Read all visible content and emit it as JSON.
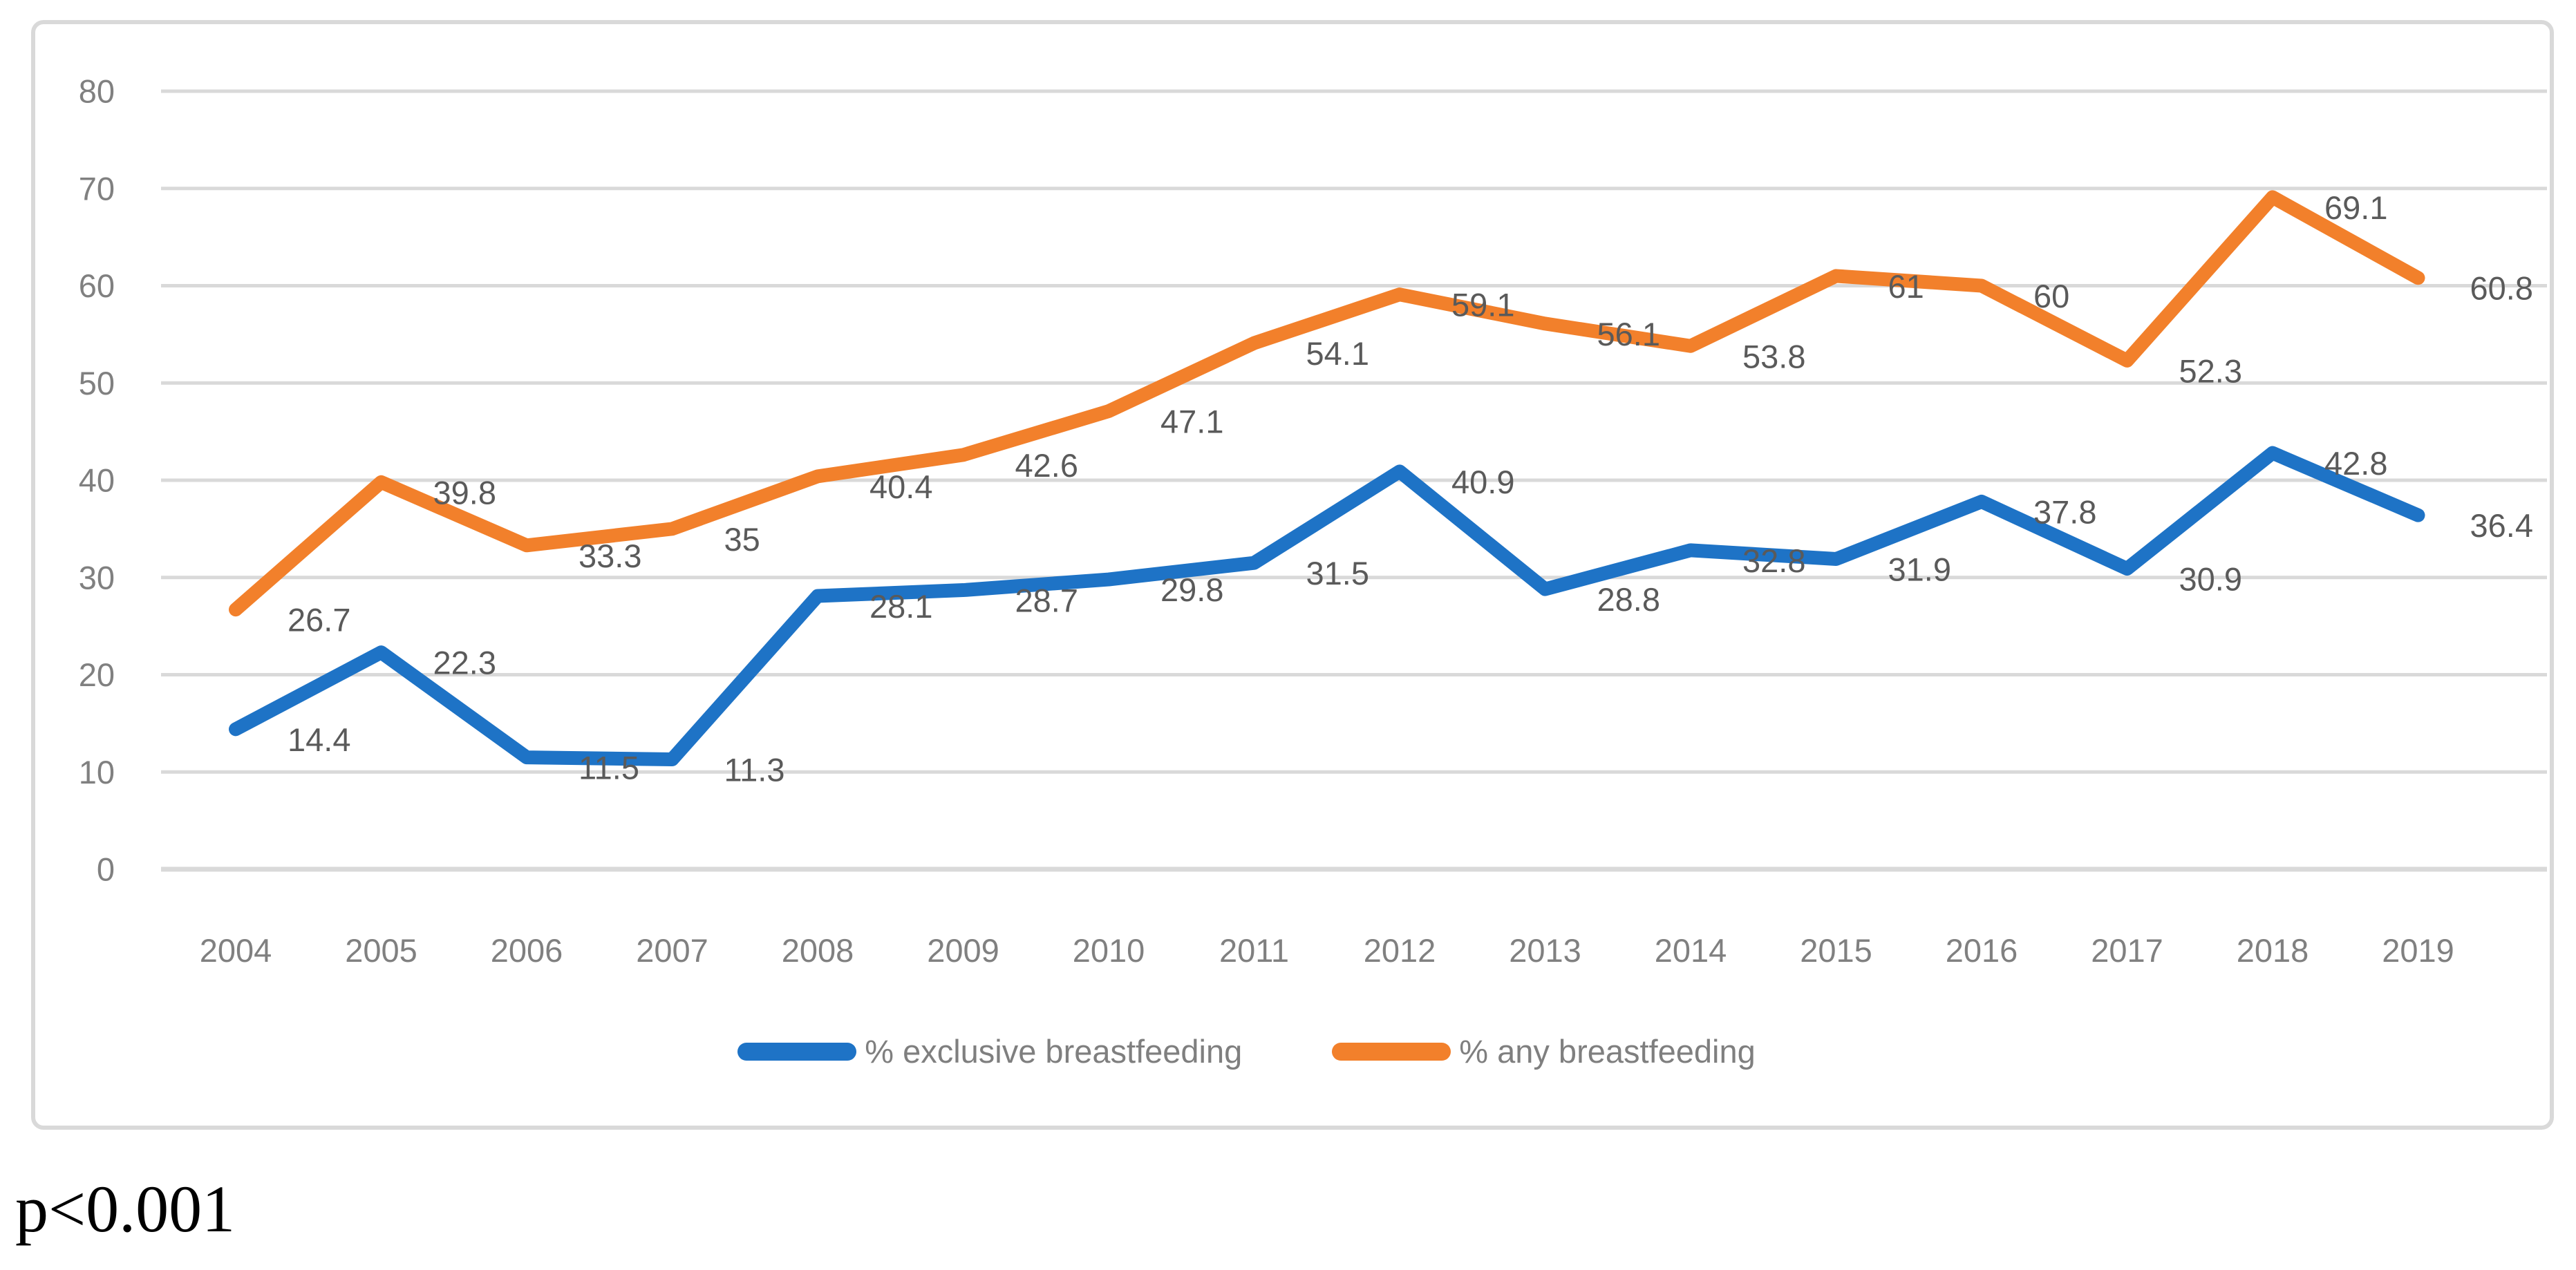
{
  "chart_data": {
    "type": "line",
    "categories": [
      "2004",
      "2005",
      "2006",
      "2007",
      "2008",
      "2009",
      "2010",
      "2011",
      "2012",
      "2013",
      "2014",
      "2015",
      "2016",
      "2017",
      "2018",
      "2019"
    ],
    "series": [
      {
        "name": "% exclusive breastfeeding",
        "data_name": "exclusive-breastfeeding",
        "color": "#1E73C6",
        "values": [
          14.4,
          22.3,
          11.5,
          11.3,
          28.1,
          28.7,
          29.8,
          31.5,
          40.9,
          28.8,
          32.8,
          31.9,
          37.8,
          30.9,
          42.8,
          36.4
        ]
      },
      {
        "name": "% any breastfeeding",
        "data_name": "any-breastfeeding",
        "color": "#F2802B",
        "values": [
          26.7,
          39.8,
          33.3,
          35,
          40.4,
          42.6,
          47.1,
          54.1,
          59.1,
          56.1,
          53.8,
          61,
          60,
          52.3,
          69.1,
          60.8
        ]
      }
    ],
    "title": "",
    "xlabel": "",
    "ylabel": "",
    "ylim": [
      0,
      80
    ],
    "yticks": [
      0,
      10,
      20,
      30,
      40,
      50,
      60,
      70,
      80
    ],
    "grid": true,
    "legend_position": "bottom",
    "data_labels": true,
    "colors": {
      "gridline": "#D9D9D9",
      "axis_label": "#808080",
      "data_label": "#5A5A5A",
      "legend_text": "#7F7F7F",
      "card_border": "#D9D9D9"
    }
  },
  "footnote": "p<0.001"
}
